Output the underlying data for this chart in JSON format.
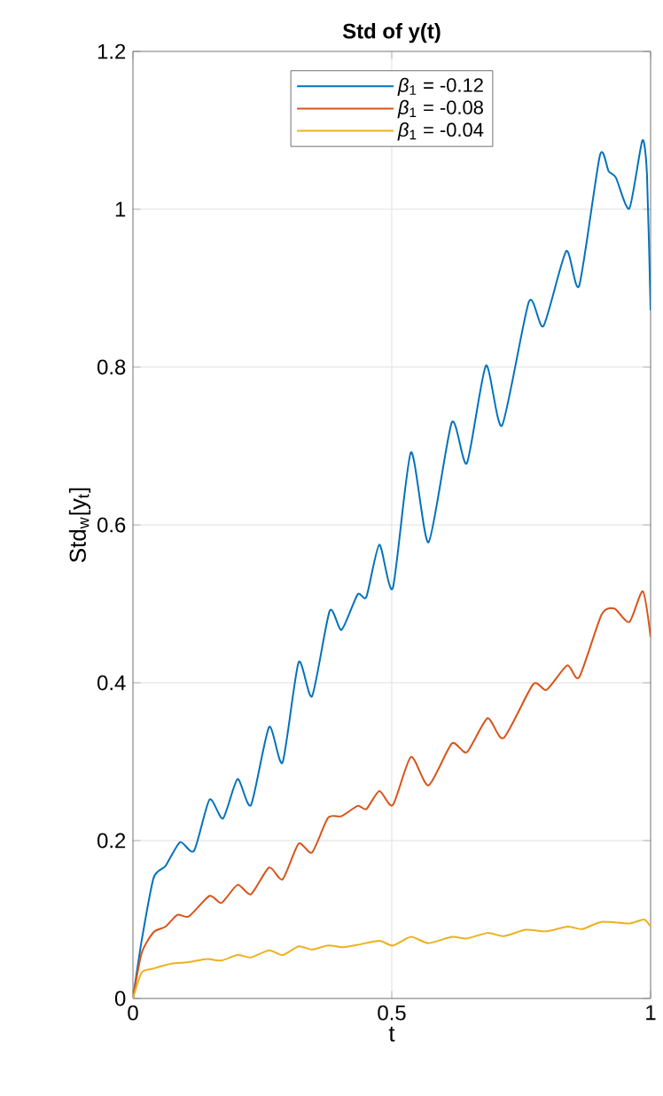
{
  "chart_data": {
    "type": "line",
    "title": "Std of y(t)",
    "xlabel": "t",
    "ylabel": "Std$_{w}$[y$_{t}$]",
    "xlim": [
      0,
      1
    ],
    "ylim": [
      0,
      1.2
    ],
    "xticks": [
      0,
      0.5,
      1
    ],
    "yticks": [
      0,
      0.2,
      0.4,
      0.6,
      0.8,
      1,
      1.2
    ],
    "grid": true,
    "legend": "top",
    "line_style": "solid",
    "marker": "none",
    "series": [
      {
        "name": "*β*$_{1}$  =  -0.12",
        "color": "#0072bd",
        "x": [
          0,
          0.017,
          0.04,
          0.063,
          0.091,
          0.118,
          0.148,
          0.174,
          0.202,
          0.228,
          0.263,
          0.289,
          0.32,
          0.346,
          0.38,
          0.403,
          0.434,
          0.451,
          0.476,
          0.502,
          0.537,
          0.571,
          0.616,
          0.645,
          0.682,
          0.713,
          0.765,
          0.793,
          0.837,
          0.862,
          0.902,
          0.919,
          0.933,
          0.959,
          0.984,
          0.993,
          1.0
        ],
        "values": [
          0,
          0.074,
          0.153,
          0.168,
          0.198,
          0.187,
          0.252,
          0.228,
          0.278,
          0.245,
          0.344,
          0.299,
          0.426,
          0.383,
          0.491,
          0.467,
          0.512,
          0.509,
          0.575,
          0.52,
          0.692,
          0.578,
          0.73,
          0.678,
          0.802,
          0.726,
          0.883,
          0.852,
          0.947,
          0.903,
          1.068,
          1.048,
          1.04,
          1.001,
          1.087,
          1.044,
          0.872
        ]
      },
      {
        "name": "*β*$_{1}$  =  -0.08",
        "color": "#d95319",
        "x": [
          0,
          0.017,
          0.04,
          0.063,
          0.086,
          0.108,
          0.148,
          0.171,
          0.202,
          0.228,
          0.263,
          0.289,
          0.32,
          0.346,
          0.377,
          0.403,
          0.434,
          0.451,
          0.476,
          0.502,
          0.537,
          0.571,
          0.616,
          0.645,
          0.685,
          0.716,
          0.773,
          0.799,
          0.839,
          0.862,
          0.905,
          0.93,
          0.959,
          0.985,
          1.0
        ],
        "values": [
          0,
          0.058,
          0.084,
          0.091,
          0.106,
          0.104,
          0.13,
          0.121,
          0.144,
          0.132,
          0.166,
          0.151,
          0.196,
          0.185,
          0.229,
          0.231,
          0.244,
          0.24,
          0.263,
          0.245,
          0.306,
          0.27,
          0.323,
          0.312,
          0.355,
          0.33,
          0.398,
          0.391,
          0.422,
          0.407,
          0.486,
          0.494,
          0.477,
          0.516,
          0.458
        ]
      },
      {
        "name": "*β*$_{1}$  =  -0.04",
        "color": "#edb120",
        "x": [
          0,
          0.017,
          0.04,
          0.074,
          0.108,
          0.143,
          0.171,
          0.202,
          0.228,
          0.263,
          0.289,
          0.32,
          0.346,
          0.377,
          0.405,
          0.434,
          0.476,
          0.502,
          0.537,
          0.571,
          0.616,
          0.645,
          0.685,
          0.716,
          0.759,
          0.799,
          0.839,
          0.868,
          0.905,
          0.959,
          0.987,
          1.0
        ],
        "values": [
          0,
          0.033,
          0.038,
          0.044,
          0.046,
          0.05,
          0.048,
          0.055,
          0.052,
          0.061,
          0.055,
          0.066,
          0.062,
          0.067,
          0.065,
          0.068,
          0.073,
          0.067,
          0.078,
          0.07,
          0.078,
          0.076,
          0.083,
          0.079,
          0.087,
          0.085,
          0.091,
          0.088,
          0.097,
          0.095,
          0.1,
          0.091
        ]
      }
    ]
  }
}
